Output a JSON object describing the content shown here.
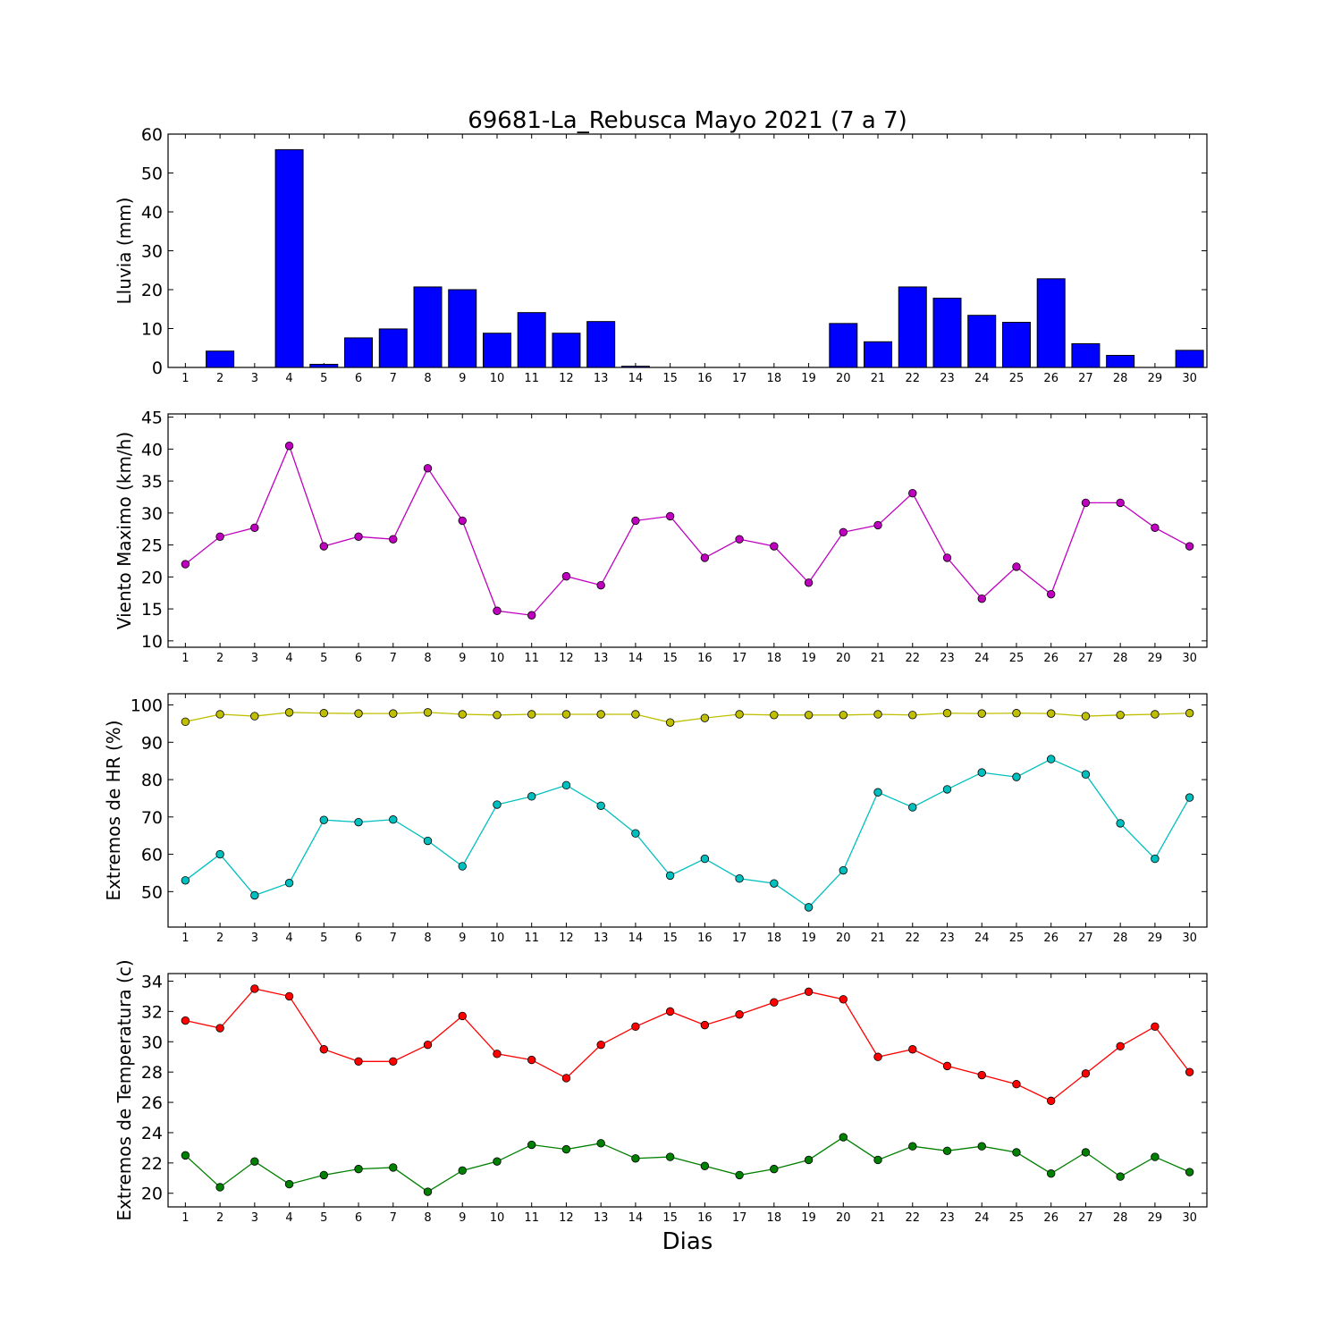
{
  "figure": {
    "title": "69681-La_Rebusca Mayo 2021  (7 a 7)",
    "xlabel": "Dias"
  },
  "chart_data": [
    {
      "type": "bar",
      "name": "lluvia",
      "ylabel": "Lluvia (mm)",
      "x": [
        1,
        2,
        3,
        4,
        5,
        6,
        7,
        8,
        9,
        10,
        11,
        12,
        13,
        14,
        15,
        16,
        17,
        18,
        19,
        20,
        21,
        22,
        23,
        24,
        25,
        26,
        27,
        28,
        29,
        30
      ],
      "values": [
        0,
        4.2,
        0,
        56,
        0.8,
        7.6,
        9.9,
        20.7,
        20,
        8.8,
        14.1,
        8.8,
        11.8,
        0.3,
        0,
        0,
        0,
        0,
        0,
        11.3,
        6.6,
        20.7,
        17.8,
        13.4,
        11.6,
        22.8,
        6.1,
        3.1,
        0,
        4.4
      ],
      "ylim": [
        0,
        60
      ],
      "yticks": [
        0,
        10,
        20,
        30,
        40,
        50,
        60
      ],
      "color": "#0000ff"
    },
    {
      "type": "line",
      "name": "viento",
      "ylabel": "Viento Maximo (km/h)",
      "x": [
        1,
        2,
        3,
        4,
        5,
        6,
        7,
        8,
        9,
        10,
        11,
        12,
        13,
        14,
        15,
        16,
        17,
        18,
        19,
        20,
        21,
        22,
        23,
        24,
        25,
        26,
        27,
        28,
        29,
        30
      ],
      "series": [
        {
          "values": [
            22,
            26.3,
            27.7,
            40.5,
            24.8,
            26.3,
            25.9,
            37,
            28.8,
            14.7,
            14,
            20.1,
            18.7,
            28.8,
            29.5,
            23,
            25.9,
            24.8,
            19.1,
            27,
            28.1,
            33.1,
            23,
            16.6,
            21.6,
            17.3,
            31.6,
            31.6,
            27.7,
            24.8
          ],
          "color": "#bf00bf"
        }
      ],
      "ylim": [
        9,
        45.5
      ],
      "yticks": [
        10,
        15,
        20,
        25,
        30,
        35,
        40,
        45
      ]
    },
    {
      "type": "line",
      "name": "humedad",
      "ylabel": "Extremos de HR (%)",
      "x": [
        1,
        2,
        3,
        4,
        5,
        6,
        7,
        8,
        9,
        10,
        11,
        12,
        13,
        14,
        15,
        16,
        17,
        18,
        19,
        20,
        21,
        22,
        23,
        24,
        25,
        26,
        27,
        28,
        29,
        30
      ],
      "series": [
        {
          "values": [
            95.5,
            97.5,
            97,
            98,
            97.8,
            97.7,
            97.7,
            98,
            97.5,
            97.3,
            97.5,
            97.5,
            97.5,
            97.5,
            95.3,
            96.5,
            97.5,
            97.3,
            97.3,
            97.3,
            97.5,
            97.3,
            97.8,
            97.7,
            97.8,
            97.7,
            97,
            97.3,
            97.5,
            97.8
          ],
          "color": "#bfbf00"
        },
        {
          "values": [
            53,
            60,
            49,
            52.3,
            69.2,
            68.6,
            69.3,
            63.6,
            56.8,
            73.3,
            75.5,
            78.5,
            73,
            65.6,
            54.3,
            58.8,
            53.5,
            52.2,
            45.8,
            55.7,
            76.6,
            72.6,
            77.4,
            81.9,
            80.7,
            85.5,
            81.4,
            68.3,
            58.8,
            75.2
          ],
          "color": "#00bfbf"
        }
      ],
      "ylim": [
        40.5,
        103
      ],
      "yticks": [
        50,
        60,
        70,
        80,
        90,
        100
      ]
    },
    {
      "type": "line",
      "name": "temperatura",
      "ylabel": "Extremos de Temperatura (c)",
      "x": [
        1,
        2,
        3,
        4,
        5,
        6,
        7,
        8,
        9,
        10,
        11,
        12,
        13,
        14,
        15,
        16,
        17,
        18,
        19,
        20,
        21,
        22,
        23,
        24,
        25,
        26,
        27,
        28,
        29,
        30
      ],
      "series": [
        {
          "values": [
            31.4,
            30.9,
            33.5,
            33,
            29.5,
            28.7,
            28.7,
            29.8,
            31.7,
            29.2,
            28.8,
            27.6,
            29.8,
            31,
            32,
            31.1,
            31.8,
            32.6,
            33.3,
            32.8,
            29,
            29.5,
            28.4,
            27.8,
            27.2,
            26.1,
            27.9,
            29.7,
            31,
            28
          ],
          "color": "#ff0000"
        },
        {
          "values": [
            22.5,
            20.4,
            22.1,
            20.6,
            21.2,
            21.6,
            21.7,
            20.1,
            21.5,
            22.1,
            23.2,
            22.9,
            23.3,
            22.3,
            22.4,
            21.8,
            21.2,
            21.6,
            22.2,
            23.7,
            22.2,
            23.1,
            22.8,
            23.1,
            22.7,
            21.3,
            22.7,
            21.1,
            22.4,
            21.4
          ],
          "color": "#008000"
        }
      ],
      "ylim": [
        19.1,
        34.5
      ],
      "yticks": [
        20,
        22,
        24,
        26,
        28,
        30,
        32,
        34
      ]
    }
  ]
}
